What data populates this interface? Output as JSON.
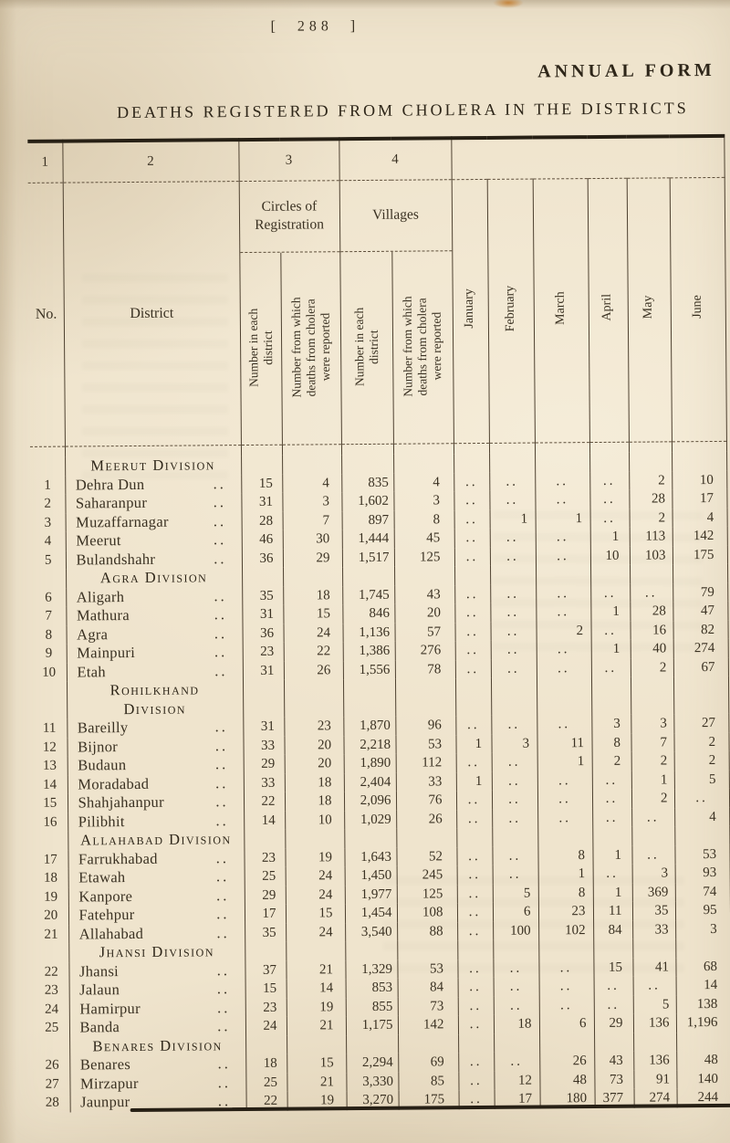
{
  "page": {
    "page_number": "[ 288 ]",
    "form_label": "ANNUAL FORM",
    "title": "DEATHS REGISTERED FROM CHOLERA IN THE DISTRICTS"
  },
  "table": {
    "column_numbers": [
      "1",
      "2",
      "3",
      "4"
    ],
    "columns": {
      "no_label": "No.",
      "district_label": "District",
      "circles_group_label": "Circles of Registration",
      "villages_group_label": "Villages",
      "sub_number_each": "Number in each\ndistrict",
      "sub_number_reported": "Number from which\ndeaths from cholera\nwere reported",
      "months": [
        "January",
        "February",
        "March",
        "April",
        "May",
        "June"
      ]
    },
    "leader_dots": "..",
    "empty_marker": "..",
    "divisions": [
      {
        "name": "Meerut Division",
        "rows": [
          {
            "no": "1",
            "district": "Dehra Dun",
            "circles_each": "15",
            "circles_reported": "4",
            "villages_each": "835",
            "villages_reported": "4",
            "months": [
              "..",
              "..",
              "..",
              "..",
              "2",
              "10"
            ]
          },
          {
            "no": "2",
            "district": "Saharanpur",
            "circles_each": "31",
            "circles_reported": "3",
            "villages_each": "1,602",
            "villages_reported": "3",
            "months": [
              "..",
              "..",
              "..",
              "..",
              "28",
              "17"
            ]
          },
          {
            "no": "3",
            "district": "Muzaffarnagar",
            "circles_each": "28",
            "circles_reported": "7",
            "villages_each": "897",
            "villages_reported": "8",
            "months": [
              "..",
              "1",
              "1",
              "..",
              "2",
              "4"
            ]
          },
          {
            "no": "4",
            "district": "Meerut",
            "circles_each": "46",
            "circles_reported": "30",
            "villages_each": "1,444",
            "villages_reported": "45",
            "months": [
              "..",
              "..",
              "..",
              "1",
              "113",
              "142"
            ]
          },
          {
            "no": "5",
            "district": "Bulandshahr",
            "circles_each": "36",
            "circles_reported": "29",
            "villages_each": "1,517",
            "villages_reported": "125",
            "months": [
              "..",
              "..",
              "..",
              "10",
              "103",
              "175"
            ]
          }
        ]
      },
      {
        "name": "Agra Division",
        "rows": [
          {
            "no": "6",
            "district": "Aligarh",
            "circles_each": "35",
            "circles_reported": "18",
            "villages_each": "1,745",
            "villages_reported": "43",
            "months": [
              "..",
              "..",
              "..",
              "..",
              "..",
              "79"
            ]
          },
          {
            "no": "7",
            "district": "Mathura",
            "circles_each": "31",
            "circles_reported": "15",
            "villages_each": "846",
            "villages_reported": "20",
            "months": [
              "..",
              "..",
              "..",
              "1",
              "28",
              "47"
            ]
          },
          {
            "no": "8",
            "district": "Agra",
            "circles_each": "36",
            "circles_reported": "24",
            "villages_each": "1,136",
            "villages_reported": "57",
            "months": [
              "..",
              "..",
              "2",
              "..",
              "16",
              "82"
            ]
          },
          {
            "no": "9",
            "district": "Mainpuri",
            "circles_each": "23",
            "circles_reported": "22",
            "villages_each": "1,386",
            "villages_reported": "276",
            "months": [
              "..",
              "..",
              "..",
              "1",
              "40",
              "274"
            ]
          },
          {
            "no": "10",
            "district": "Etah",
            "circles_each": "31",
            "circles_reported": "26",
            "villages_each": "1,556",
            "villages_reported": "78",
            "months": [
              "..",
              "..",
              "..",
              "..",
              "2",
              "67"
            ]
          }
        ]
      },
      {
        "name": "Rohilkhand Division",
        "two_lines": true,
        "rows": [
          {
            "no": "11",
            "district": "Bareilly",
            "circles_each": "31",
            "circles_reported": "23",
            "villages_each": "1,870",
            "villages_reported": "96",
            "months": [
              "..",
              "..",
              "..",
              "3",
              "3",
              "27"
            ]
          },
          {
            "no": "12",
            "district": "Bijnor",
            "circles_each": "33",
            "circles_reported": "20",
            "villages_each": "2,218",
            "villages_reported": "53",
            "months": [
              "1",
              "3",
              "11",
              "8",
              "7",
              "2"
            ]
          },
          {
            "no": "13",
            "district": "Budaun",
            "circles_each": "29",
            "circles_reported": "20",
            "villages_each": "1,890",
            "villages_reported": "112",
            "months": [
              "..",
              "..",
              "1",
              "2",
              "2",
              "2"
            ]
          },
          {
            "no": "14",
            "district": "Moradabad",
            "circles_each": "33",
            "circles_reported": "18",
            "villages_each": "2,404",
            "villages_reported": "33",
            "months": [
              "1",
              "..",
              "..",
              "..",
              "1",
              "5"
            ]
          },
          {
            "no": "15",
            "district": "Shahjahanpur",
            "circles_each": "22",
            "circles_reported": "18",
            "villages_each": "2,096",
            "villages_reported": "76",
            "months": [
              "..",
              "..",
              "..",
              "..",
              "2",
              ".."
            ]
          },
          {
            "no": "16",
            "district": "Pilibhit",
            "circles_each": "14",
            "circles_reported": "10",
            "villages_each": "1,029",
            "villages_reported": "26",
            "months": [
              "..",
              "..",
              "..",
              "..",
              "..",
              "4"
            ]
          }
        ]
      },
      {
        "name": "Allahabad Division",
        "rows": [
          {
            "no": "17",
            "district": "Farrukhabad",
            "circles_each": "23",
            "circles_reported": "19",
            "villages_each": "1,643",
            "villages_reported": "52",
            "months": [
              "..",
              "..",
              "8",
              "1",
              "..",
              "53"
            ]
          },
          {
            "no": "18",
            "district": "Etawah",
            "circles_each": "25",
            "circles_reported": "24",
            "villages_each": "1,450",
            "villages_reported": "245",
            "months": [
              "..",
              "..",
              "1",
              "..",
              "3",
              "93"
            ]
          },
          {
            "no": "19",
            "district": "Kanpore",
            "circles_each": "29",
            "circles_reported": "24",
            "villages_each": "1,977",
            "villages_reported": "125",
            "months": [
              "..",
              "5",
              "8",
              "1",
              "369",
              "74"
            ]
          },
          {
            "no": "20",
            "district": "Fatehpur",
            "circles_each": "17",
            "circles_reported": "15",
            "villages_each": "1,454",
            "villages_reported": "108",
            "months": [
              "..",
              "6",
              "23",
              "11",
              "35",
              "95"
            ]
          },
          {
            "no": "21",
            "district": "Allahabad",
            "circles_each": "35",
            "circles_reported": "24",
            "villages_each": "3,540",
            "villages_reported": "88",
            "months": [
              "..",
              "100",
              "102",
              "84",
              "33",
              "3"
            ]
          }
        ]
      },
      {
        "name": "Jhansi Division",
        "rows": [
          {
            "no": "22",
            "district": "Jhansi",
            "circles_each": "37",
            "circles_reported": "21",
            "villages_each": "1,329",
            "villages_reported": "53",
            "months": [
              "..",
              "..",
              "..",
              "15",
              "41",
              "68"
            ]
          },
          {
            "no": "23",
            "district": "Jalaun",
            "circles_each": "15",
            "circles_reported": "14",
            "villages_each": "853",
            "villages_reported": "84",
            "months": [
              "..",
              "..",
              "..",
              "..",
              "..",
              "14"
            ]
          },
          {
            "no": "24",
            "district": "Hamirpur",
            "circles_each": "23",
            "circles_reported": "19",
            "villages_each": "855",
            "villages_reported": "73",
            "months": [
              "..",
              "..",
              "..",
              "..",
              "5",
              "138"
            ]
          },
          {
            "no": "25",
            "district": "Banda",
            "circles_each": "24",
            "circles_reported": "21",
            "villages_each": "1,175",
            "villages_reported": "142",
            "months": [
              "..",
              "18",
              "6",
              "29",
              "136",
              "1,196"
            ]
          }
        ]
      },
      {
        "name": "Benares Division",
        "rows": [
          {
            "no": "26",
            "district": "Benares",
            "circles_each": "18",
            "circles_reported": "15",
            "villages_each": "2,294",
            "villages_reported": "69",
            "months": [
              "..",
              "..",
              "26",
              "43",
              "136",
              "48"
            ]
          },
          {
            "no": "27",
            "district": "Mirzapur",
            "circles_each": "25",
            "circles_reported": "21",
            "villages_each": "3,330",
            "villages_reported": "85",
            "months": [
              "..",
              "12",
              "48",
              "73",
              "91",
              "140"
            ]
          },
          {
            "no": "28",
            "district": "Jaunpur",
            "circles_each": "22",
            "circles_reported": "19",
            "villages_each": "3,270",
            "villages_reported": "175",
            "months": [
              "..",
              "17",
              "180",
              "377",
              "274",
              "244"
            ]
          }
        ]
      }
    ]
  }
}
